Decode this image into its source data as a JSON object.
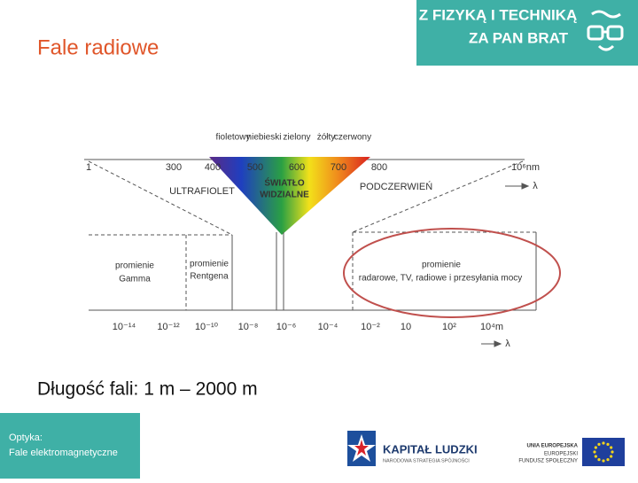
{
  "header": {
    "title": "Fale radiowe",
    "brand_line1": "Z FIZYKĄ I TECHNIKĄ",
    "brand_line2": "ZA PAN BRAT"
  },
  "diagram": {
    "color_labels": [
      "fioletowy",
      "niebieski",
      "zielony",
      "żółty",
      "czerwony"
    ],
    "top_scale": [
      "1",
      "300",
      "400",
      "500",
      "600",
      "700",
      "800",
      "10⁶nm"
    ],
    "top_arrow_label": "λ",
    "regions": {
      "ultraviolet": "ULTRAFIOLET",
      "visible": [
        "ŚWIATŁO",
        "WIDZIALNE"
      ],
      "infrared": "PODCZERWIEŃ"
    },
    "bands": {
      "gamma": [
        "promienie",
        "Gamma"
      ],
      "xray": [
        "promienie",
        "Rentgena"
      ],
      "radio": [
        "promienie",
        "radarowe, TV, radiowe i przesyłania mocy"
      ]
    },
    "bottom_scale": [
      "10⁻¹⁴",
      "10⁻¹²",
      "10⁻¹⁰",
      "10⁻⁸",
      "10⁻⁶",
      "10⁻⁴",
      "10⁻²",
      "10",
      "10²",
      "10⁴m"
    ],
    "bottom_arrow_label": "λ"
  },
  "body": {
    "text": "Długość fali: 1 m – 2000 m"
  },
  "footer": {
    "topic": "Optyka:",
    "subtopic": "Fale elektromagnetyczne",
    "logo_kl": "KAPITAŁ LUDZKI",
    "logo_kl_sub": "NARODOWA STRATEGIA SPÓJNOŚCI",
    "logo_eu": [
      "UNIA EUROPEJSKA",
      "EUROPEJSKI",
      "FUNDUSZ SPOŁECZNY"
    ]
  }
}
